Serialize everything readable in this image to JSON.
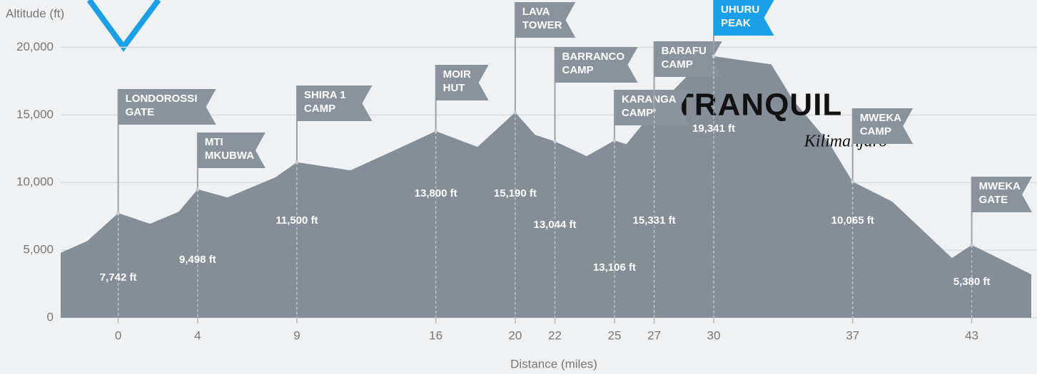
{
  "chart_data": {
    "type": "area",
    "y_axis_label": "Altitude (ft)",
    "x_axis_label": "Distance (miles)",
    "xlim": [
      -2.9,
      46
    ],
    "ylim": [
      0,
      23500
    ],
    "xticks": [
      0,
      4,
      9,
      16,
      20,
      22,
      25,
      27,
      30,
      37,
      43
    ],
    "yticks": [
      0,
      {
        "value": 5000,
        "label": "5,000"
      },
      {
        "value": 10000,
        "label": "10,000"
      },
      {
        "value": 15000,
        "label": "15,000"
      },
      {
        "value": 20000,
        "label": "20,000"
      }
    ],
    "grid": true,
    "color": "#858d96",
    "profile": {
      "x": [
        -2.9,
        -1.55,
        0,
        1.6,
        3.05,
        4,
        5.5,
        7.9,
        9,
        11.7,
        13.8,
        16,
        18.1,
        20,
        21,
        22,
        23.6,
        25,
        25.6,
        27,
        28.6,
        30,
        32.9,
        34,
        35.8,
        37,
        39,
        42,
        43,
        46
      ],
      "values": [
        4800,
        5680,
        7742,
        6950,
        7840,
        9498,
        8900,
        10370,
        11500,
        10900,
        12300,
        13800,
        12630,
        15190,
        13530,
        13044,
        11950,
        13106,
        12840,
        15331,
        17790,
        19341,
        18740,
        16100,
        12950,
        10065,
        8580,
        4420,
        5380,
        3210
      ]
    },
    "camps": {
      "names": [
        [
          "LONDOROSSI",
          "GATE"
        ],
        [
          "MTI",
          "MKUBWA"
        ],
        [
          "SHIRA 1",
          "CAMP"
        ],
        [
          "MOIR",
          "HUT"
        ],
        [
          "LAVA",
          "TOWER"
        ],
        [
          "BARRANCO",
          "CAMP"
        ],
        [
          "KARANGA",
          "CAMP"
        ],
        [
          "BARAFU",
          "CAMP"
        ],
        [
          "UHURU",
          "PEAK"
        ],
        [
          "MWEKA",
          "CAMP"
        ],
        [
          "MWEKA",
          "GATE"
        ]
      ],
      "x": [
        0,
        4,
        9,
        16,
        20,
        22,
        25,
        27,
        30,
        37,
        43
      ],
      "values": [
        7742,
        9498,
        11500,
        13800,
        15190,
        13044,
        13106,
        15331,
        19341,
        10065,
        5380
      ],
      "value_labels": [
        "7,742 ft",
        "9,498 ft",
        "11,500 ft",
        "13,800 ft",
        "15,190 ft",
        "13,044 ft",
        "13,106 ft",
        "15,331 ft",
        "19,341 ft",
        "10,065 ft",
        "5,380 ft"
      ],
      "colors": [
        "#8a939b",
        "#8a939b",
        "#8a939b",
        "#8a939b",
        "#8a939b",
        "#8a939b",
        "#8a939b",
        "#8a939b",
        "#1aa0e8",
        "#8a939b",
        "#8a939b"
      ]
    },
    "logo": {
      "text": "TRANQUIL",
      "tagline": "Kilimanjaro"
    }
  }
}
